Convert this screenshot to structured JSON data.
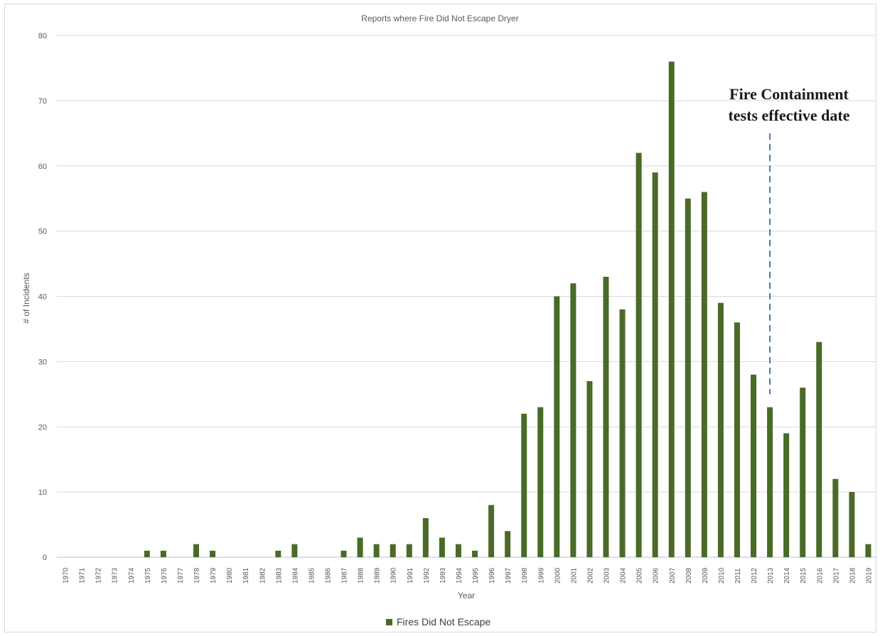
{
  "chart_data": {
    "type": "bar",
    "title": "Reports where Fire Did Not Escape Dryer",
    "xlabel": "Year",
    "ylabel": "# of Incidents",
    "ylim": [
      0,
      80
    ],
    "yticks": [
      0,
      10,
      20,
      30,
      40,
      50,
      60,
      70,
      80
    ],
    "grid": true,
    "legend_position": "bottom",
    "categories": [
      "1970",
      "1971",
      "1972",
      "1973",
      "1974",
      "1975",
      "1976",
      "1977",
      "1978",
      "1979",
      "1980",
      "1981",
      "1982",
      "1983",
      "1984",
      "1985",
      "1986",
      "1987",
      "1988",
      "1989",
      "1990",
      "1991",
      "1992",
      "1993",
      "1994",
      "1995",
      "1996",
      "1997",
      "1998",
      "1999",
      "2000",
      "2001",
      "2002",
      "2003",
      "2004",
      "2005",
      "2006",
      "2007",
      "2008",
      "2009",
      "2010",
      "2011",
      "2012",
      "2013",
      "2014",
      "2015",
      "2016",
      "2017",
      "2018",
      "2019"
    ],
    "series": [
      {
        "name": "Fires Did Not Escape",
        "color": "#4a6a28",
        "values": [
          0,
          0,
          0,
          0,
          0,
          1,
          1,
          0,
          2,
          1,
          0,
          0,
          0,
          1,
          2,
          0,
          0,
          1,
          3,
          2,
          2,
          2,
          6,
          3,
          2,
          1,
          8,
          4,
          22,
          23,
          40,
          42,
          27,
          43,
          38,
          62,
          59,
          76,
          55,
          56,
          39,
          36,
          28,
          23,
          19,
          26,
          33,
          12,
          10,
          2
        ]
      }
    ],
    "annotations": [
      {
        "text_line1": "Fire Containment",
        "text_line2": "tests effective date",
        "at_category": "2013",
        "line_color": "#4472c4",
        "line_style": "dashed",
        "line_y_range": [
          25,
          65
        ]
      }
    ]
  }
}
